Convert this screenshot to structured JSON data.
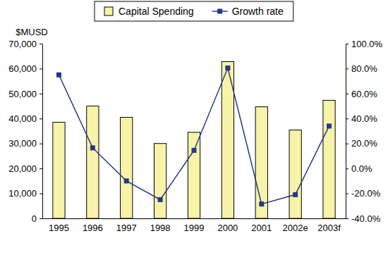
{
  "chart_data": {
    "type": "bar",
    "ylabel": "$MUSD",
    "categories": [
      "1995",
      "1996",
      "1997",
      "1998",
      "1999",
      "2000",
      "2001",
      "2002e",
      "2003f"
    ],
    "series": [
      {
        "name": "Capital Spending",
        "type": "bar",
        "color": "#f7f3a8",
        "values": [
          38500,
          45000,
          40500,
          30000,
          34500,
          62800,
          44700,
          35400,
          47300
        ]
      },
      {
        "name": "Growth rate",
        "type": "line",
        "axis": "y2",
        "color": "#23378c",
        "marker": "square",
        "line_style": "solid",
        "values": [
          75.0,
          16.5,
          -10.0,
          -25.0,
          14.5,
          80.5,
          -28.5,
          -21.0,
          34.0
        ]
      }
    ],
    "ylim": [
      0,
      70000
    ],
    "yticks": [
      0,
      {
        "value": 10000,
        "label": "10,000"
      },
      {
        "value": 20000,
        "label": "20,000"
      },
      {
        "value": 30000,
        "label": "30,000"
      },
      {
        "value": 40000,
        "label": "40,000"
      },
      {
        "value": 50000,
        "label": "50,000"
      },
      {
        "value": 60000,
        "label": "60,000"
      },
      {
        "value": 70000,
        "label": "70,000"
      }
    ],
    "y2lim": [
      -40,
      100
    ],
    "y2ticks": [
      {
        "value": -40,
        "label": "-40.0%"
      },
      {
        "value": -20,
        "label": "-20.0%"
      },
      {
        "value": 0,
        "label": "0.0%"
      },
      {
        "value": 20,
        "label": "20.0%"
      },
      {
        "value": 40,
        "label": "40.0%"
      },
      {
        "value": 60,
        "label": "60.0%"
      },
      {
        "value": 80,
        "label": "80.0%"
      },
      {
        "value": 100,
        "label": "100.0%"
      }
    ],
    "grid": false,
    "legend": "top"
  }
}
